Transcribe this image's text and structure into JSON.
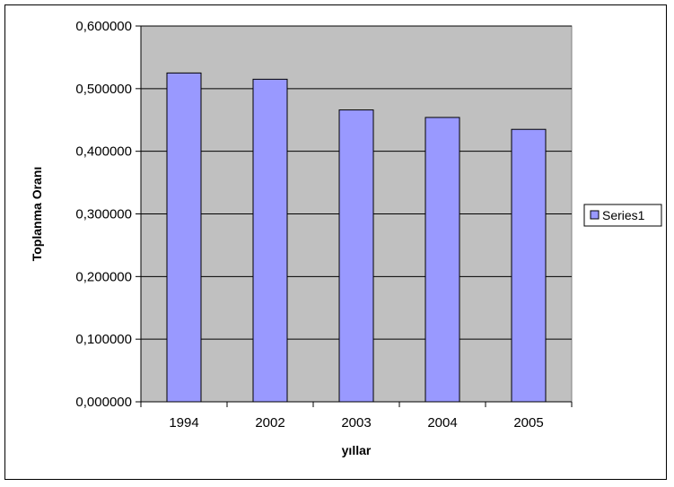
{
  "chart_data": {
    "type": "bar",
    "title": "",
    "xlabel": "yıllar",
    "ylabel": "Toplanma Oranı",
    "categories": [
      "1994",
      "2002",
      "2003",
      "2004",
      "2005"
    ],
    "series": [
      {
        "name": "Series1",
        "values": [
          0.525,
          0.515,
          0.466,
          0.454,
          0.435
        ]
      }
    ],
    "ylim": [
      0,
      0.6
    ],
    "yticks": [
      "0,000000",
      "0,100000",
      "0,200000",
      "0,300000",
      "0,400000",
      "0,500000",
      "0,600000"
    ],
    "grid": true,
    "legend": "right",
    "colors": {
      "plot_background": "#c0c0c0",
      "bar_fill": "#9999ff",
      "bar_stroke": "#000000",
      "gridline": "#000000"
    }
  }
}
